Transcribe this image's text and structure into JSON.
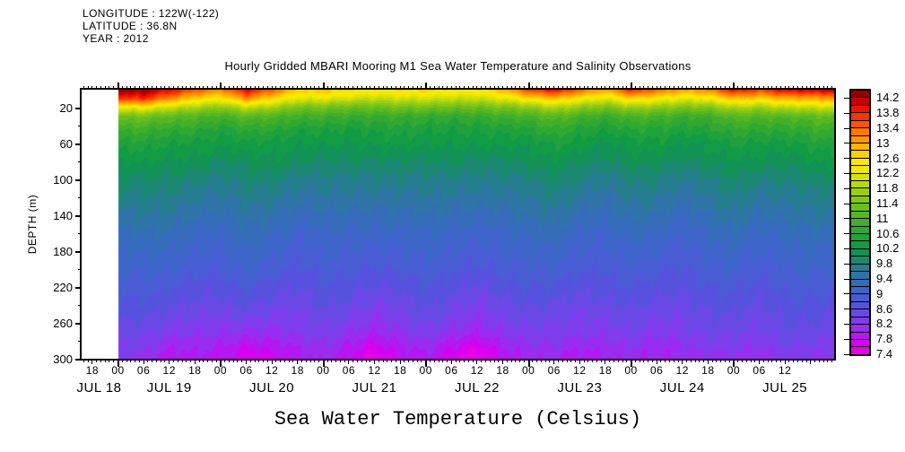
{
  "header": {
    "longitude": "LONGITUDE : 122W(-122)",
    "latitude": "LATITUDE : 36.8N",
    "year": "YEAR : 2012"
  },
  "title": "Hourly Gridded MBARI Mooring M1 Sea Water Temperature and Salinity Observations",
  "caption": "Sea Water Temperature (Celsius)",
  "colors": {
    "background": "#ffffff",
    "axis": "#000000",
    "no_data": "#ffffff"
  },
  "chart_data": {
    "type": "heatmap",
    "title": "Hourly Gridded MBARI Mooring M1 Sea Water Temperature and Salinity Observations",
    "ylabel": "DEPTH (m)",
    "ylim": [
      0,
      300
    ],
    "y_major_ticks": [
      20,
      60,
      100,
      140,
      180,
      220,
      260,
      300
    ],
    "y_minor_step": 20,
    "x_axis": {
      "units": "hours from JUL 19 00:00",
      "axis_start_hour": -8.5,
      "axis_end_hour": 167.5,
      "data_start_hour": 0,
      "minor_tick_every_hours": 1,
      "labeled_tick_every_hours": 6
    },
    "x_hour_tick_hours": [
      -6,
      0,
      6,
      12,
      18,
      24,
      30,
      36,
      42,
      48,
      54,
      60,
      66,
      72,
      78,
      84,
      90,
      96,
      102,
      108,
      114,
      120,
      126,
      132,
      138,
      144,
      150,
      156
    ],
    "x_hour_tick_labels": [
      "18",
      "00",
      "06",
      "12",
      "18",
      "00",
      "06",
      "12",
      "18",
      "00",
      "06",
      "12",
      "18",
      "00",
      "06",
      "12",
      "18",
      "00",
      "06",
      "12",
      "18",
      "00",
      "06",
      "12",
      "18",
      "00",
      "06",
      "12"
    ],
    "dates": [
      {
        "label": "JUL 18",
        "hour": -4.4
      },
      {
        "label": "JUL 19",
        "hour": 12
      },
      {
        "label": "JUL 20",
        "hour": 36
      },
      {
        "label": "JUL 21",
        "hour": 60
      },
      {
        "label": "JUL 22",
        "hour": 84
      },
      {
        "label": "JUL 23",
        "hour": 108
      },
      {
        "label": "JUL 24",
        "hour": 132
      },
      {
        "label": "JUL 25",
        "hour": 156
      }
    ],
    "colorbar": {
      "min": 7.4,
      "max": 14.4,
      "cell_step": 0.2,
      "tick_labels": [
        "7.4",
        "7.8",
        "8.2",
        "8.6",
        "9",
        "9.4",
        "9.8",
        "10.2",
        "10.6",
        "11",
        "11.4",
        "11.8",
        "12.2",
        "12.6",
        "13",
        "13.4",
        "13.8",
        "14.2"
      ],
      "colors_bottom_to_top": [
        "#E800E8",
        "#D800F0",
        "#B516F2",
        "#9A2BF0",
        "#7F3CEC",
        "#6948E6",
        "#5752DE",
        "#485CD4",
        "#3D64C9",
        "#356CBA",
        "#2E74A6",
        "#257E8E",
        "#1B8972",
        "#129355",
        "#119B45",
        "#1FA13B",
        "#30A831",
        "#42AF2A",
        "#55B724",
        "#6ABF1E",
        "#81C719",
        "#9BCF13",
        "#B8D90D",
        "#D6E207",
        "#F0EA02",
        "#FFE800",
        "#FFD000",
        "#FFB400",
        "#FF9700",
        "#FF7800",
        "#FF5500",
        "#F83300",
        "#EC1400",
        "#C80200",
        "#980000"
      ]
    },
    "grid": {
      "depths_m": [
        0,
        10,
        20,
        30,
        45,
        60,
        80,
        100,
        130,
        160,
        200,
        240,
        270,
        290,
        300
      ],
      "time_hours": [
        0,
        6,
        12,
        18,
        24,
        30,
        36,
        42,
        48,
        54,
        60,
        66,
        72,
        78,
        84,
        90,
        96,
        102,
        108,
        114,
        120,
        126,
        132,
        138,
        144,
        150,
        156,
        162
      ],
      "temperature_c": [
        [
          14.3,
          14.4,
          14.1,
          13.5,
          13.2,
          14.1,
          13.5,
          12.7,
          12.9,
          12.7,
          12.5,
          12.6,
          12.8,
          12.6,
          12.5,
          12.9,
          13.7,
          14.0,
          13.4,
          13.0,
          13.9,
          13.4,
          13.0,
          13.3,
          14.0,
          13.6,
          14.1,
          14.2
        ],
        [
          13.6,
          13.8,
          13.2,
          12.6,
          12.4,
          13.2,
          12.6,
          12.1,
          12.2,
          12.1,
          11.9,
          12.0,
          12.1,
          12.0,
          11.9,
          12.2,
          12.6,
          12.8,
          12.4,
          12.2,
          12.7,
          12.4,
          12.2,
          12.4,
          12.8,
          12.6,
          12.9,
          13.0
        ],
        [
          12.2,
          12.4,
          12.0,
          11.7,
          11.5,
          12.0,
          11.7,
          11.3,
          11.4,
          11.3,
          11.2,
          11.3,
          11.4,
          11.3,
          11.2,
          11.4,
          11.6,
          11.8,
          11.5,
          11.4,
          11.7,
          11.5,
          11.4,
          11.5,
          11.8,
          11.6,
          11.9,
          12.0
        ],
        [
          11.3,
          11.4,
          11.2,
          11.0,
          10.9,
          11.2,
          11.0,
          10.8,
          10.9,
          10.8,
          10.7,
          10.8,
          10.8,
          10.7,
          10.7,
          10.9,
          11.0,
          11.1,
          10.9,
          10.8,
          11.0,
          10.9,
          10.8,
          10.9,
          11.1,
          11.0,
          11.1,
          11.2
        ],
        [
          10.8,
          10.9,
          10.7,
          10.6,
          10.5,
          10.7,
          10.6,
          10.4,
          10.5,
          10.4,
          10.4,
          10.5,
          10.5,
          10.4,
          10.4,
          10.5,
          10.6,
          10.7,
          10.5,
          10.5,
          10.6,
          10.5,
          10.5,
          10.6,
          10.7,
          10.6,
          10.7,
          10.8
        ],
        [
          10.5,
          10.6,
          10.4,
          10.3,
          10.3,
          10.4,
          10.3,
          10.2,
          10.3,
          10.2,
          10.2,
          10.3,
          10.3,
          10.2,
          10.2,
          10.3,
          10.3,
          10.4,
          10.3,
          10.2,
          10.3,
          10.3,
          10.2,
          10.3,
          10.4,
          10.3,
          10.4,
          10.5
        ],
        [
          10.2,
          10.3,
          10.1,
          10.1,
          10.0,
          10.1,
          10.1,
          10.0,
          10.0,
          10.0,
          9.9,
          10.0,
          10.0,
          10.0,
          9.9,
          10.0,
          10.1,
          10.1,
          10.0,
          10.0,
          10.1,
          10.0,
          10.0,
          10.1,
          10.1,
          10.1,
          10.1,
          10.2
        ],
        [
          10.0,
          10.0,
          9.9,
          9.8,
          9.8,
          9.9,
          9.8,
          9.7,
          9.8,
          9.7,
          9.7,
          9.8,
          9.8,
          9.7,
          9.7,
          9.8,
          9.8,
          9.9,
          9.8,
          9.7,
          9.8,
          9.8,
          9.7,
          9.8,
          9.9,
          9.8,
          9.9,
          9.9
        ],
        [
          9.7,
          9.7,
          9.6,
          9.5,
          9.5,
          9.6,
          9.5,
          9.4,
          9.5,
          9.4,
          9.4,
          9.5,
          9.5,
          9.4,
          9.4,
          9.5,
          9.5,
          9.6,
          9.5,
          9.4,
          9.5,
          9.5,
          9.4,
          9.5,
          9.6,
          9.5,
          9.6,
          9.6
        ],
        [
          9.4,
          9.4,
          9.3,
          9.2,
          9.2,
          9.3,
          9.2,
          9.1,
          9.2,
          9.1,
          9.1,
          9.2,
          9.2,
          9.1,
          9.1,
          9.2,
          9.2,
          9.3,
          9.2,
          9.1,
          9.2,
          9.2,
          9.1,
          9.2,
          9.3,
          9.2,
          9.3,
          9.3
        ],
        [
          9.1,
          9.0,
          9.0,
          8.9,
          8.9,
          9.0,
          8.9,
          8.8,
          8.9,
          8.8,
          8.8,
          8.9,
          8.9,
          8.8,
          8.8,
          8.9,
          8.9,
          9.0,
          8.9,
          8.8,
          8.9,
          8.9,
          8.8,
          8.9,
          9.0,
          8.9,
          9.0,
          9.0
        ],
        [
          8.8,
          8.7,
          8.6,
          8.6,
          8.5,
          8.6,
          8.5,
          8.5,
          8.6,
          8.5,
          8.4,
          8.5,
          8.6,
          8.5,
          8.4,
          8.5,
          8.6,
          8.6,
          8.5,
          8.5,
          8.6,
          8.6,
          8.5,
          8.6,
          8.7,
          8.6,
          8.7,
          8.7
        ],
        [
          8.5,
          8.4,
          8.3,
          8.3,
          8.2,
          8.1,
          8.2,
          8.3,
          8.3,
          8.2,
          8.1,
          8.2,
          8.3,
          8.2,
          8.1,
          8.2,
          8.3,
          8.4,
          8.3,
          8.2,
          8.4,
          8.3,
          8.3,
          8.4,
          8.5,
          8.4,
          8.5,
          8.5
        ],
        [
          8.3,
          8.2,
          8.0,
          8.1,
          7.9,
          7.7,
          7.9,
          8.0,
          8.1,
          7.9,
          7.7,
          7.9,
          8.0,
          7.8,
          7.6,
          7.9,
          8.1,
          8.2,
          8.0,
          8.0,
          8.2,
          8.1,
          8.1,
          8.2,
          8.3,
          8.2,
          8.3,
          8.3
        ],
        [
          8.2,
          8.1,
          7.9,
          8.0,
          7.8,
          7.6,
          7.8,
          7.9,
          8.0,
          7.8,
          7.5,
          7.8,
          7.9,
          7.7,
          7.5,
          7.8,
          8.0,
          8.1,
          7.9,
          7.9,
          8.1,
          8.0,
          8.0,
          8.1,
          8.2,
          8.1,
          8.2,
          8.2
        ]
      ]
    }
  }
}
